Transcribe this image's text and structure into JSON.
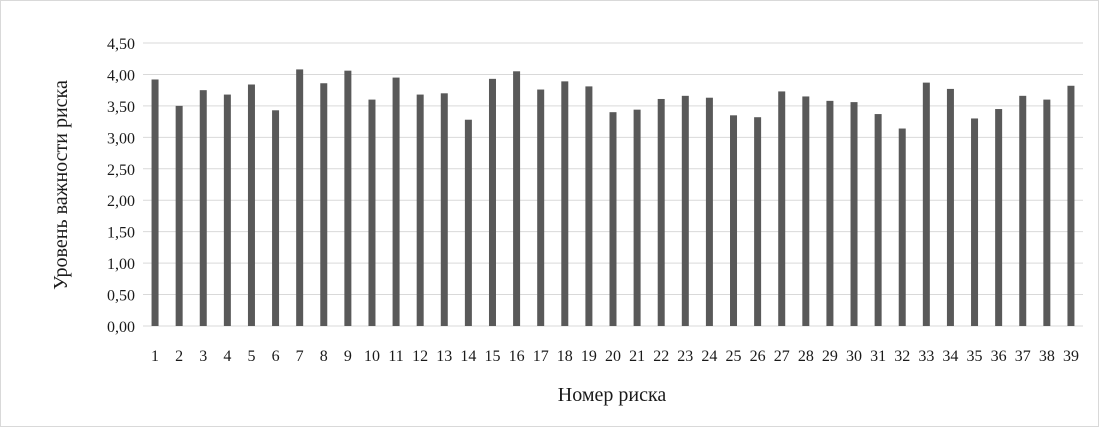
{
  "chart_data": {
    "type": "bar",
    "title": "",
    "xlabel": "Номер риска",
    "ylabel": "Уровень важности риска",
    "ylim": [
      0,
      4.5
    ],
    "y_ticks": [
      "0,00",
      "0,50",
      "1,00",
      "1,50",
      "2,00",
      "2,50",
      "3,00",
      "3,50",
      "4,00",
      "4,50"
    ],
    "grid": true,
    "legend": "none",
    "bar_color": "#595959",
    "grid_color": "#d9d9d9",
    "categories": [
      "1",
      "2",
      "3",
      "4",
      "5",
      "6",
      "7",
      "8",
      "9",
      "10",
      "11",
      "12",
      "13",
      "14",
      "15",
      "16",
      "17",
      "18",
      "19",
      "20",
      "21",
      "22",
      "23",
      "24",
      "25",
      "26",
      "27",
      "28",
      "29",
      "30",
      "31",
      "32",
      "33",
      "34",
      "35",
      "36",
      "37",
      "38",
      "39"
    ],
    "values": [
      3.92,
      3.5,
      3.75,
      3.68,
      3.84,
      3.43,
      4.08,
      3.86,
      4.06,
      3.6,
      3.95,
      3.68,
      3.7,
      3.28,
      3.93,
      4.05,
      3.76,
      3.89,
      3.81,
      3.4,
      3.44,
      3.61,
      3.66,
      3.63,
      3.35,
      3.32,
      3.73,
      3.65,
      3.58,
      3.56,
      3.37,
      3.14,
      3.87,
      3.77,
      3.3,
      3.45,
      3.66,
      3.6,
      3.82
    ]
  }
}
